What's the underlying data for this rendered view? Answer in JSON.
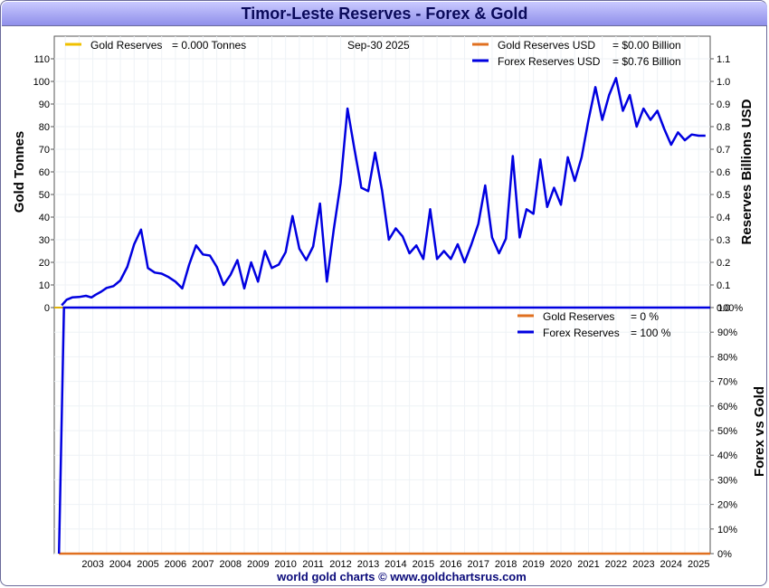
{
  "title": "Timor-Leste Reserves - Forex & Gold",
  "footer": "world gold charts © www.goldchartsrus.com",
  "colors": {
    "gold": "#f0c000",
    "gold_usd": "#e07020",
    "forex": "#0000e0",
    "zero_line": "#e0c800"
  },
  "legend_top": {
    "gold_tonnes_label": "Gold Reserves",
    "gold_tonnes_value": "= 0.000 Tonnes",
    "date": "Sep-30  2025",
    "gold_usd_label": "Gold Reserves USD",
    "gold_usd_value": "= $0.00 Billion",
    "forex_usd_label": "Forex Reserves USD",
    "forex_usd_value": "= $0.76 Billion"
  },
  "legend_bottom": {
    "gold_label": "Gold Reserves",
    "gold_value": "= 0 %",
    "forex_label": "Forex Reserves",
    "forex_value": "= 100 %"
  },
  "chart_data": [
    {
      "type": "line",
      "title": "Timor-Leste Reserves - Forex & Gold",
      "xlabel": "",
      "ylabel_left": "Gold Tonnes",
      "ylabel_right": "Reserves Billions USD",
      "ylim_left": [
        0,
        120
      ],
      "ylim_right": [
        0,
        1.2
      ],
      "yticks_left": [
        "0",
        "10",
        "20",
        "30",
        "40",
        "50",
        "60",
        "70",
        "80",
        "90",
        "100",
        "110"
      ],
      "yticks_right": [
        "0.0",
        "0.1",
        "0.2",
        "0.3",
        "0.4",
        "0.5",
        "0.6",
        "0.7",
        "0.8",
        "0.9",
        "1.0",
        "1.1"
      ],
      "xlim": [
        2002.1,
        2025.92
      ],
      "x_tick_labels": [
        "2003",
        "2004",
        "2005",
        "2006",
        "2007",
        "2008",
        "2009",
        "2010",
        "2011",
        "2012",
        "2013",
        "2014",
        "2015",
        "2016",
        "2017",
        "2018",
        "2019",
        "2020",
        "2021",
        "2022",
        "2023",
        "2024",
        "2025"
      ],
      "grid": true,
      "series": [
        {
          "name": "Forex Reserves USD",
          "axis": "right",
          "x": [
            2002.37,
            2002.55,
            2002.75,
            2003.0,
            2003.25,
            2003.45,
            2003.6,
            2003.8,
            2004.0,
            2004.25,
            2004.5,
            2004.75,
            2005.0,
            2005.25,
            2005.5,
            2005.75,
            2006.0,
            2006.25,
            2006.5,
            2006.75,
            2007.0,
            2007.25,
            2007.5,
            2007.75,
            2008.0,
            2008.25,
            2008.5,
            2008.75,
            2009.0,
            2009.25,
            2009.5,
            2009.75,
            2010.0,
            2010.25,
            2010.5,
            2010.75,
            2011.0,
            2011.25,
            2011.5,
            2011.75,
            2012.0,
            2012.25,
            2012.5,
            2012.75,
            2013.0,
            2013.25,
            2013.5,
            2013.75,
            2014.0,
            2014.25,
            2014.5,
            2014.75,
            2015.0,
            2015.25,
            2015.5,
            2015.75,
            2016.0,
            2016.25,
            2016.5,
            2016.75,
            2017.0,
            2017.25,
            2017.5,
            2017.75,
            2018.0,
            2018.25,
            2018.5,
            2018.75,
            2019.0,
            2019.25,
            2019.5,
            2019.75,
            2020.0,
            2020.25,
            2020.5,
            2020.75,
            2021.0,
            2021.25,
            2021.5,
            2021.75,
            2022.0,
            2022.25,
            2022.5,
            2022.75,
            2023.0,
            2023.25,
            2023.5,
            2023.75,
            2024.0,
            2024.25,
            2024.5,
            2024.75,
            2025.0,
            2025.25,
            2025.5,
            2025.75
          ],
          "y": [
            0.01,
            0.035,
            0.045,
            0.047,
            0.052,
            0.045,
            0.057,
            0.07,
            0.087,
            0.095,
            0.12,
            0.18,
            0.28,
            0.345,
            0.175,
            0.155,
            0.15,
            0.135,
            0.115,
            0.085,
            0.19,
            0.275,
            0.235,
            0.23,
            0.18,
            0.1,
            0.145,
            0.21,
            0.085,
            0.2,
            0.115,
            0.25,
            0.175,
            0.19,
            0.245,
            0.405,
            0.26,
            0.21,
            0.27,
            0.46,
            0.115,
            0.345,
            0.55,
            0.88,
            0.7,
            0.53,
            0.515,
            0.685,
            0.52,
            0.3,
            0.35,
            0.315,
            0.24,
            0.275,
            0.215,
            0.435,
            0.215,
            0.25,
            0.215,
            0.28,
            0.2,
            0.28,
            0.37,
            0.54,
            0.31,
            0.24,
            0.305,
            0.67,
            0.31,
            0.435,
            0.415,
            0.655,
            0.445,
            0.53,
            0.455,
            0.665,
            0.56,
            0.665,
            0.83,
            0.975,
            0.83,
            0.94,
            1.015,
            0.87,
            0.94,
            0.8,
            0.88,
            0.83,
            0.87,
            0.79,
            0.72,
            0.775,
            0.74,
            0.765,
            0.76,
            0.76
          ]
        },
        {
          "name": "Gold Reserves USD",
          "axis": "right",
          "x": [
            2002.1,
            2025.92
          ],
          "y": [
            0,
            0
          ]
        },
        {
          "name": "Gold Reserves",
          "axis": "left",
          "x": [
            2002.1,
            2025.92
          ],
          "y": [
            0,
            0
          ]
        }
      ]
    },
    {
      "type": "line",
      "title": "",
      "ylabel_right": "Forex vs Gold",
      "ylim": [
        0,
        100
      ],
      "yticks_right": [
        "0%",
        "10%",
        "20%",
        "30%",
        "40%",
        "50%",
        "60%",
        "70%",
        "80%",
        "90%",
        "100%"
      ],
      "series": [
        {
          "name": "Forex Reserves",
          "x": [
            2002.27,
            2002.45,
            2025.92
          ],
          "y": [
            0,
            100,
            100
          ]
        },
        {
          "name": "Gold Reserves",
          "x": [
            2002.27,
            2002.45,
            2025.92
          ],
          "y": [
            0,
            0,
            0
          ]
        }
      ]
    }
  ]
}
